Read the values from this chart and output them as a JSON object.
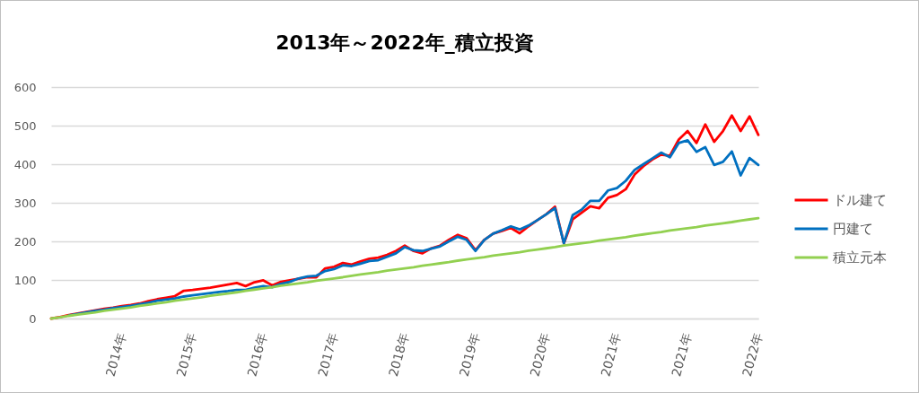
{
  "chart_data": {
    "type": "line",
    "title": "2013年～2022年_積立投資",
    "categories": [
      null,
      null,
      null,
      null,
      null,
      null,
      null,
      null,
      "2014年",
      null,
      null,
      null,
      null,
      null,
      null,
      null,
      "2015年",
      null,
      null,
      null,
      null,
      null,
      null,
      null,
      "2016年",
      null,
      null,
      null,
      null,
      null,
      null,
      null,
      "2017年",
      null,
      null,
      null,
      null,
      null,
      null,
      null,
      "2018年",
      null,
      null,
      null,
      null,
      null,
      null,
      null,
      "2019年",
      null,
      null,
      null,
      null,
      null,
      null,
      null,
      "2020年",
      null,
      null,
      null,
      null,
      null,
      null,
      null,
      "2021年",
      null,
      null,
      null,
      null,
      null,
      null,
      null,
      "2021年",
      null,
      null,
      null,
      null,
      null,
      null,
      null,
      "2022年"
    ],
    "series": [
      {
        "name": "ドル建て",
        "color": "#ff0000",
        "values": [
          0,
          4,
          9,
          13,
          17,
          21,
          25,
          28,
          32,
          35,
          39,
          45,
          50,
          54,
          58,
          72,
          74,
          77,
          80,
          84,
          88,
          92,
          84,
          94,
          99,
          86,
          95,
          99,
          103,
          107,
          107,
          130,
          134,
          144,
          140,
          148,
          155,
          158,
          165,
          175,
          189,
          175,
          169,
          182,
          189,
          204,
          217,
          208,
          177,
          204,
          220,
          227,
          235,
          221,
          239,
          255,
          270,
          290,
          195,
          257,
          274,
          291,
          286,
          313,
          320,
          335,
          373,
          395,
          412,
          425,
          422,
          464,
          486,
          455,
          503,
          458,
          486,
          526,
          486,
          524,
          476
        ]
      },
      {
        "name": "円建て",
        "color": "#0070c0",
        "values": [
          null,
          null,
          8,
          12,
          16,
          20,
          23,
          27,
          30,
          33,
          37,
          41,
          46,
          49,
          52,
          57,
          60,
          63,
          66,
          69,
          71,
          74,
          74,
          80,
          84,
          81,
          90,
          95,
          104,
          109,
          111,
          123,
          128,
          138,
          136,
          142,
          149,
          151,
          160,
          169,
          185,
          177,
          175,
          181,
          187,
          200,
          212,
          204,
          175,
          204,
          220,
          229,
          239,
          231,
          241,
          255,
          270,
          286,
          195,
          268,
          282,
          305,
          305,
          332,
          338,
          357,
          385,
          400,
          415,
          430,
          418,
          455,
          462,
          432,
          444,
          398,
          406,
          433,
          371,
          416,
          398
        ]
      },
      {
        "name": "積立元本",
        "color": "#92d050",
        "values": [
          0,
          3,
          7,
          10,
          13,
          16,
          20,
          23,
          26,
          29,
          33,
          36,
          39,
          42,
          46,
          49,
          52,
          55,
          59,
          62,
          65,
          68,
          72,
          75,
          78,
          81,
          85,
          88,
          91,
          94,
          98,
          101,
          104,
          107,
          111,
          114,
          117,
          120,
          124,
          127,
          130,
          133,
          137,
          140,
          143,
          146,
          150,
          153,
          156,
          159,
          163,
          166,
          169,
          172,
          176,
          179,
          182,
          185,
          189,
          192,
          195,
          198,
          202,
          205,
          208,
          211,
          215,
          218,
          221,
          224,
          228,
          231,
          234,
          237,
          241,
          244,
          247,
          250,
          254,
          257,
          260
        ]
      }
    ],
    "ylim": [
      0,
      600
    ],
    "yticks": [
      0,
      100,
      200,
      300,
      400,
      500,
      600
    ],
    "grid": "y",
    "legend": "right"
  }
}
